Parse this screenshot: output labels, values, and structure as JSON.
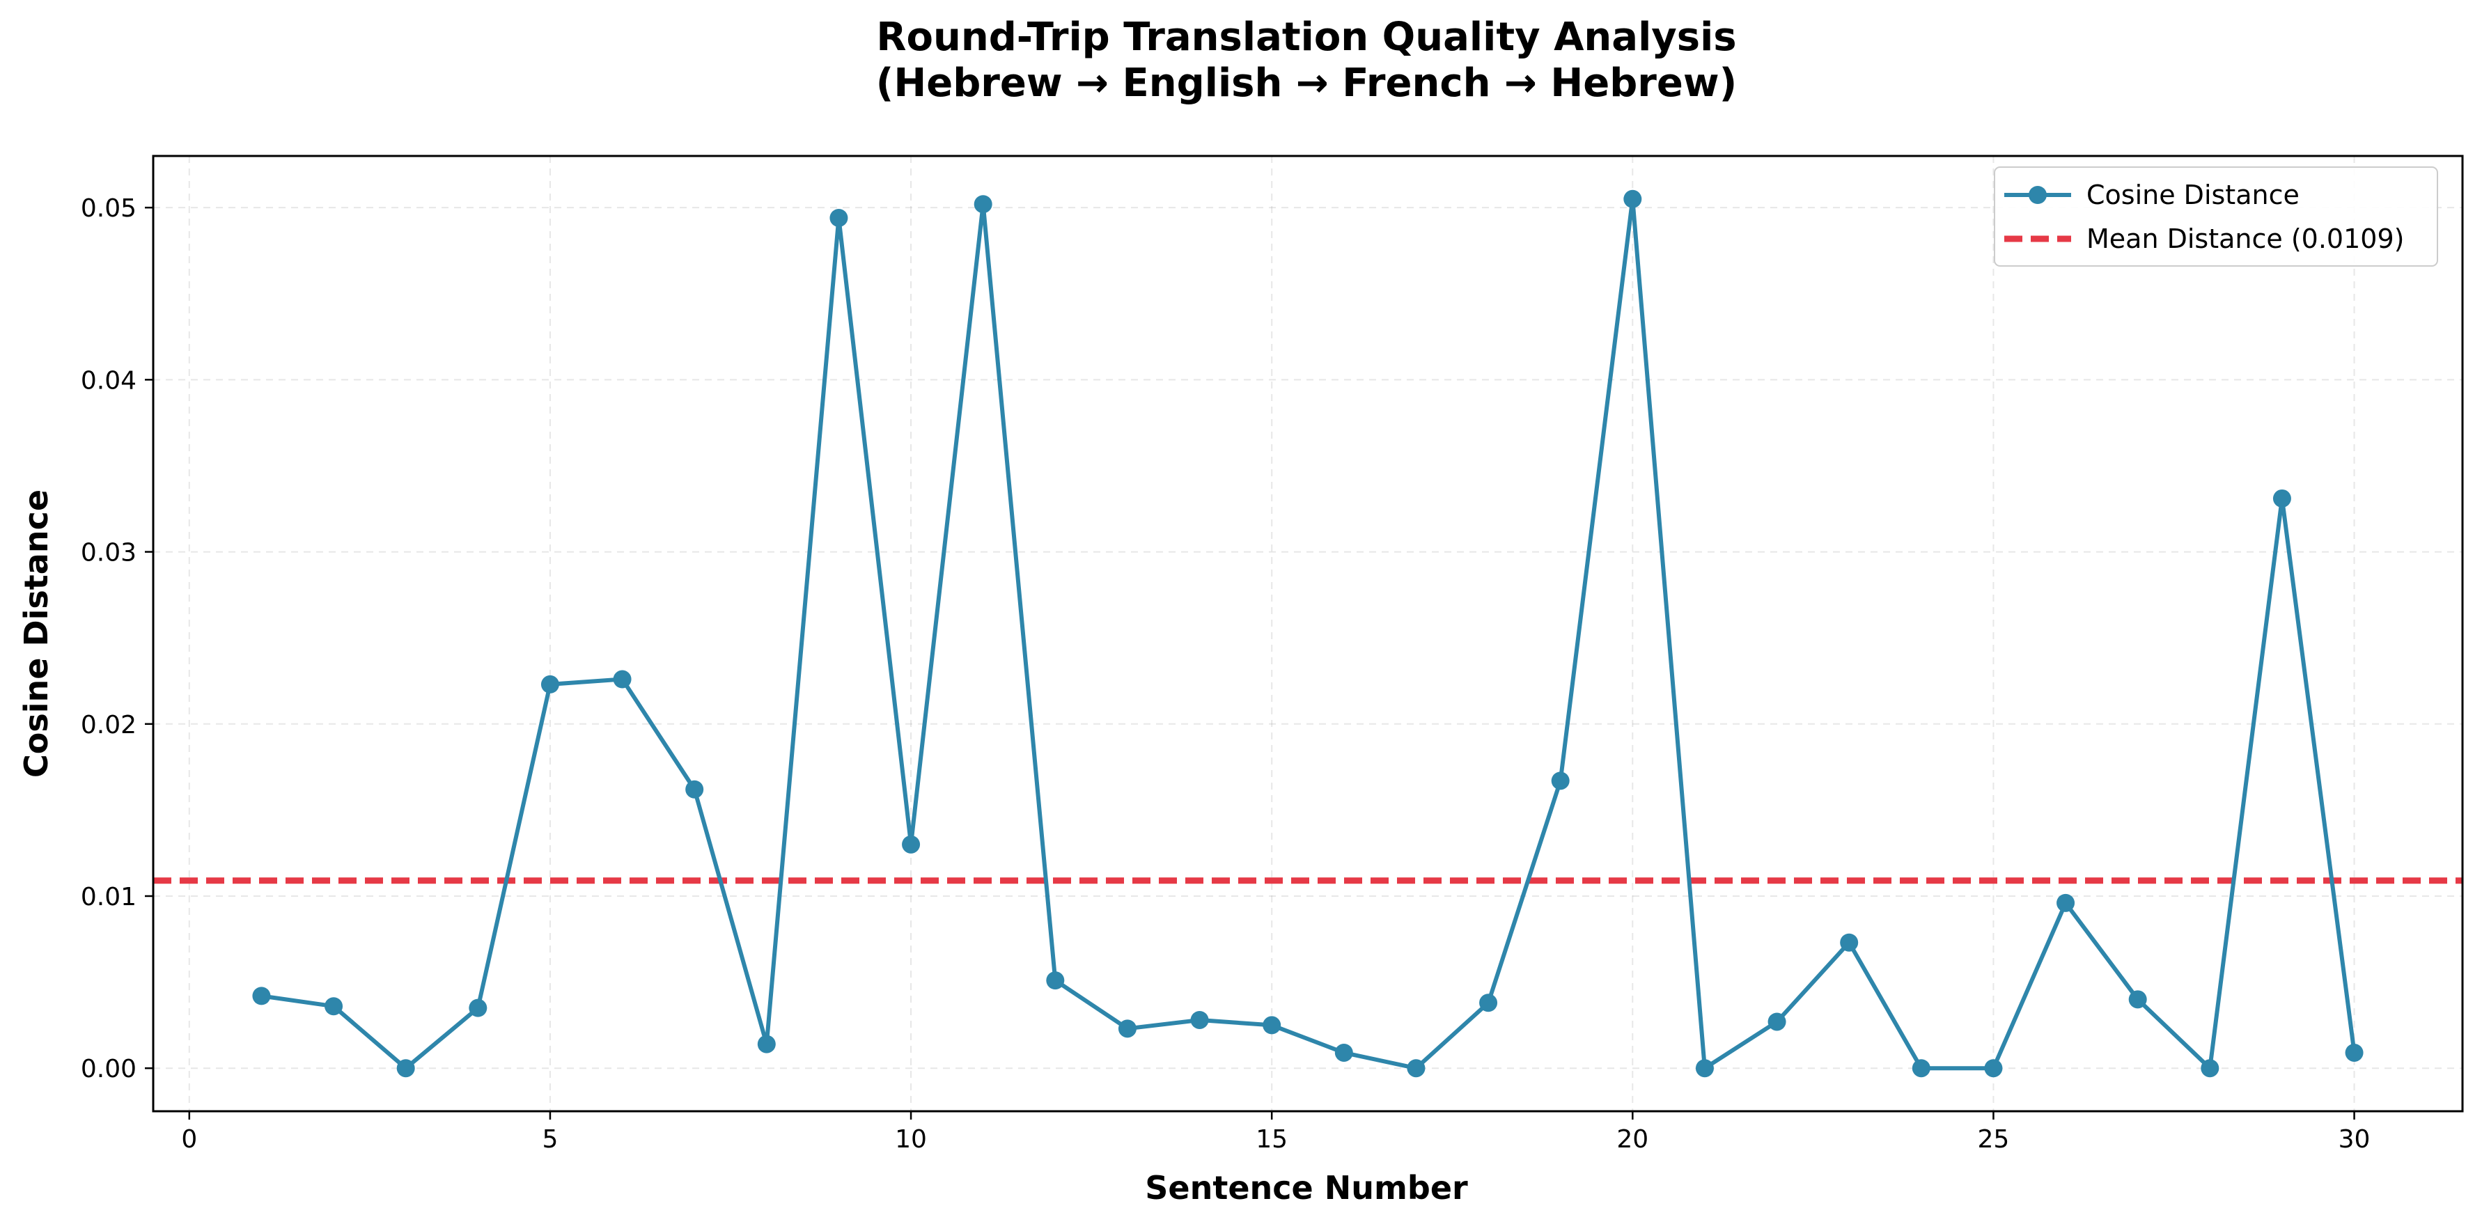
{
  "chart_data": {
    "type": "line",
    "title_line1": "Round-Trip Translation Quality Analysis",
    "title_line2": "(Hebrew → English → French → Hebrew)",
    "xlabel": "Sentence Number",
    "ylabel": "Cosine Distance",
    "xlim": [
      -0.5,
      31.5
    ],
    "ylim": [
      -0.0025,
      0.053
    ],
    "xticks": [
      0,
      5,
      10,
      15,
      20,
      25,
      30
    ],
    "xtick_labels": [
      "0",
      "5",
      "10",
      "15",
      "20",
      "25",
      "30"
    ],
    "yticks": [
      0,
      0.01,
      0.02,
      0.03,
      0.04,
      0.05
    ],
    "ytick_labels": [
      "0.00",
      "0.01",
      "0.02",
      "0.03",
      "0.04",
      "0.05"
    ],
    "grid": true,
    "legend_position": "top-right",
    "series": [
      {
        "name": "Cosine Distance",
        "color": "#2e86ab",
        "style": "solid-with-markers",
        "x": [
          1,
          2,
          3,
          4,
          5,
          6,
          7,
          8,
          9,
          10,
          11,
          12,
          13,
          14,
          15,
          16,
          17,
          18,
          19,
          20,
          21,
          22,
          23,
          24,
          25,
          26,
          27,
          28,
          29,
          30
        ],
        "y": [
          0.0042,
          0.0036,
          0.0,
          0.0035,
          0.0223,
          0.0226,
          0.0162,
          0.0014,
          0.0494,
          0.013,
          0.0502,
          0.0051,
          0.0023,
          0.0028,
          0.0025,
          0.0009,
          0.0,
          0.0038,
          0.0167,
          0.0505,
          0.0,
          0.0027,
          0.0073,
          0.0,
          0.0,
          0.0096,
          0.004,
          0.0,
          0.0331,
          0.0009
        ]
      }
    ],
    "reference_lines": [
      {
        "name": "Mean Distance (0.0109)",
        "y": 0.0109,
        "color": "#e63946",
        "style": "dashed"
      }
    ]
  }
}
